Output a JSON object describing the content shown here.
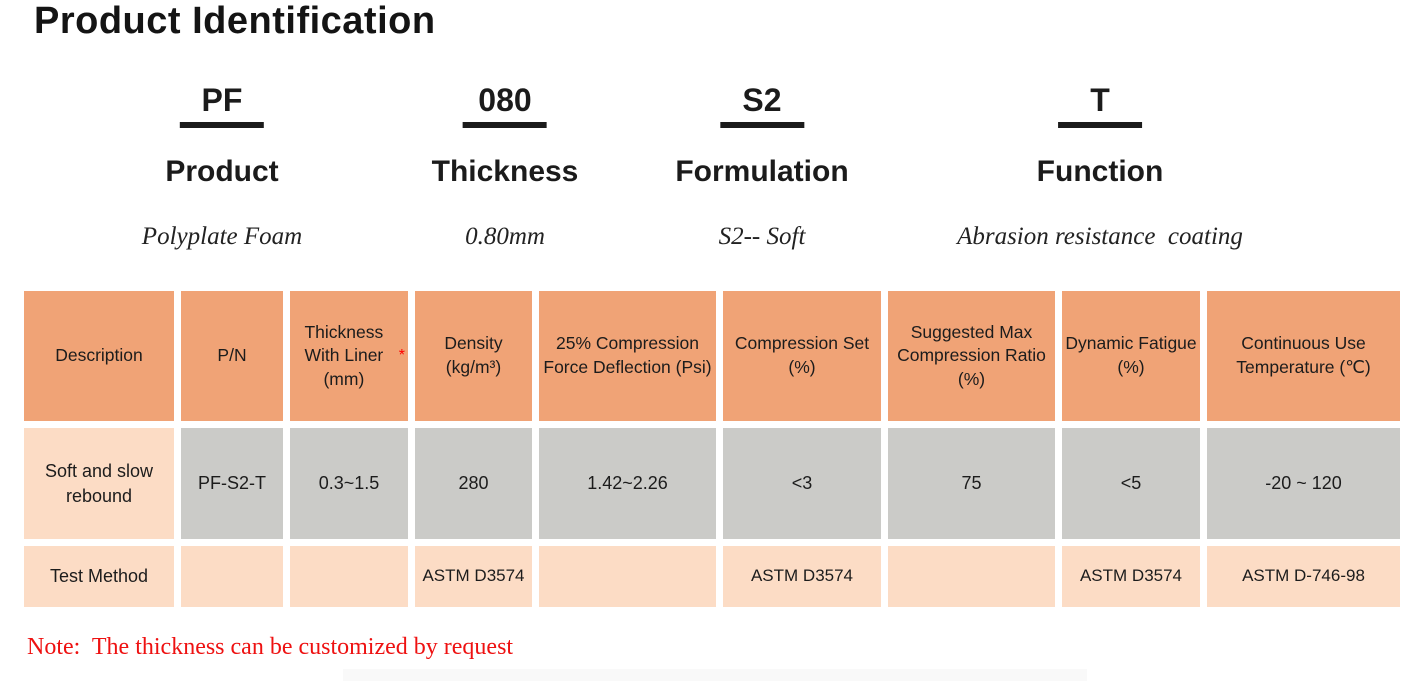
{
  "title": "Product Identification",
  "code_breakdown": {
    "items": [
      {
        "code": "PF",
        "label": "Product",
        "meaning": "Polyplate Foam"
      },
      {
        "code": "080",
        "label": "Thickness",
        "meaning": "0.80mm"
      },
      {
        "code": "S2",
        "label": "Formulation",
        "meaning": "S2-- Soft"
      },
      {
        "code": "T",
        "label": "Function",
        "meaning": "Abrasion resistance  coating"
      }
    ]
  },
  "spec_table": {
    "headers": [
      {
        "text": "Description"
      },
      {
        "text": "P/N"
      },
      {
        "text": "Thickness With Liner (mm)",
        "star": "*"
      },
      {
        "text": "Density (kg/m³)"
      },
      {
        "text": "25% Compression Force Deflection (Psi)"
      },
      {
        "text": "Compression Set (%)"
      },
      {
        "text": "Suggested Max Compression Ratio (%)"
      },
      {
        "text": "Dynamic Fatigue (%)"
      },
      {
        "text": "Continuous Use Temperature (℃)"
      }
    ],
    "product_row": {
      "description": "Soft and slow rebound",
      "pn": "PF-S2-T",
      "thickness_with_liner": "0.3~1.5",
      "density": "280",
      "compression_force_deflection": "1.42~2.26",
      "compression_set": "<3",
      "max_compression_ratio": "75",
      "dynamic_fatigue": "<5",
      "continuous_use_temperature": "-20 ~ 120"
    },
    "test_method_row": {
      "label": "Test Method",
      "pn": "",
      "thickness_with_liner": "",
      "density": "ASTM D3574",
      "compression_force_deflection": "",
      "compression_set": "ASTM D3574",
      "max_compression_ratio": "",
      "dynamic_fatigue": "ASTM D3574",
      "continuous_use_temperature": "ASTM D-746-98"
    }
  },
  "note": "Note:  The thickness can be customized by request",
  "colors": {
    "header_orange": "#F0A376",
    "peach": "#FCDCC5",
    "gray": "#CBCBC8",
    "note_red": "#EE1111",
    "asterisk_red": "#FF0000"
  }
}
